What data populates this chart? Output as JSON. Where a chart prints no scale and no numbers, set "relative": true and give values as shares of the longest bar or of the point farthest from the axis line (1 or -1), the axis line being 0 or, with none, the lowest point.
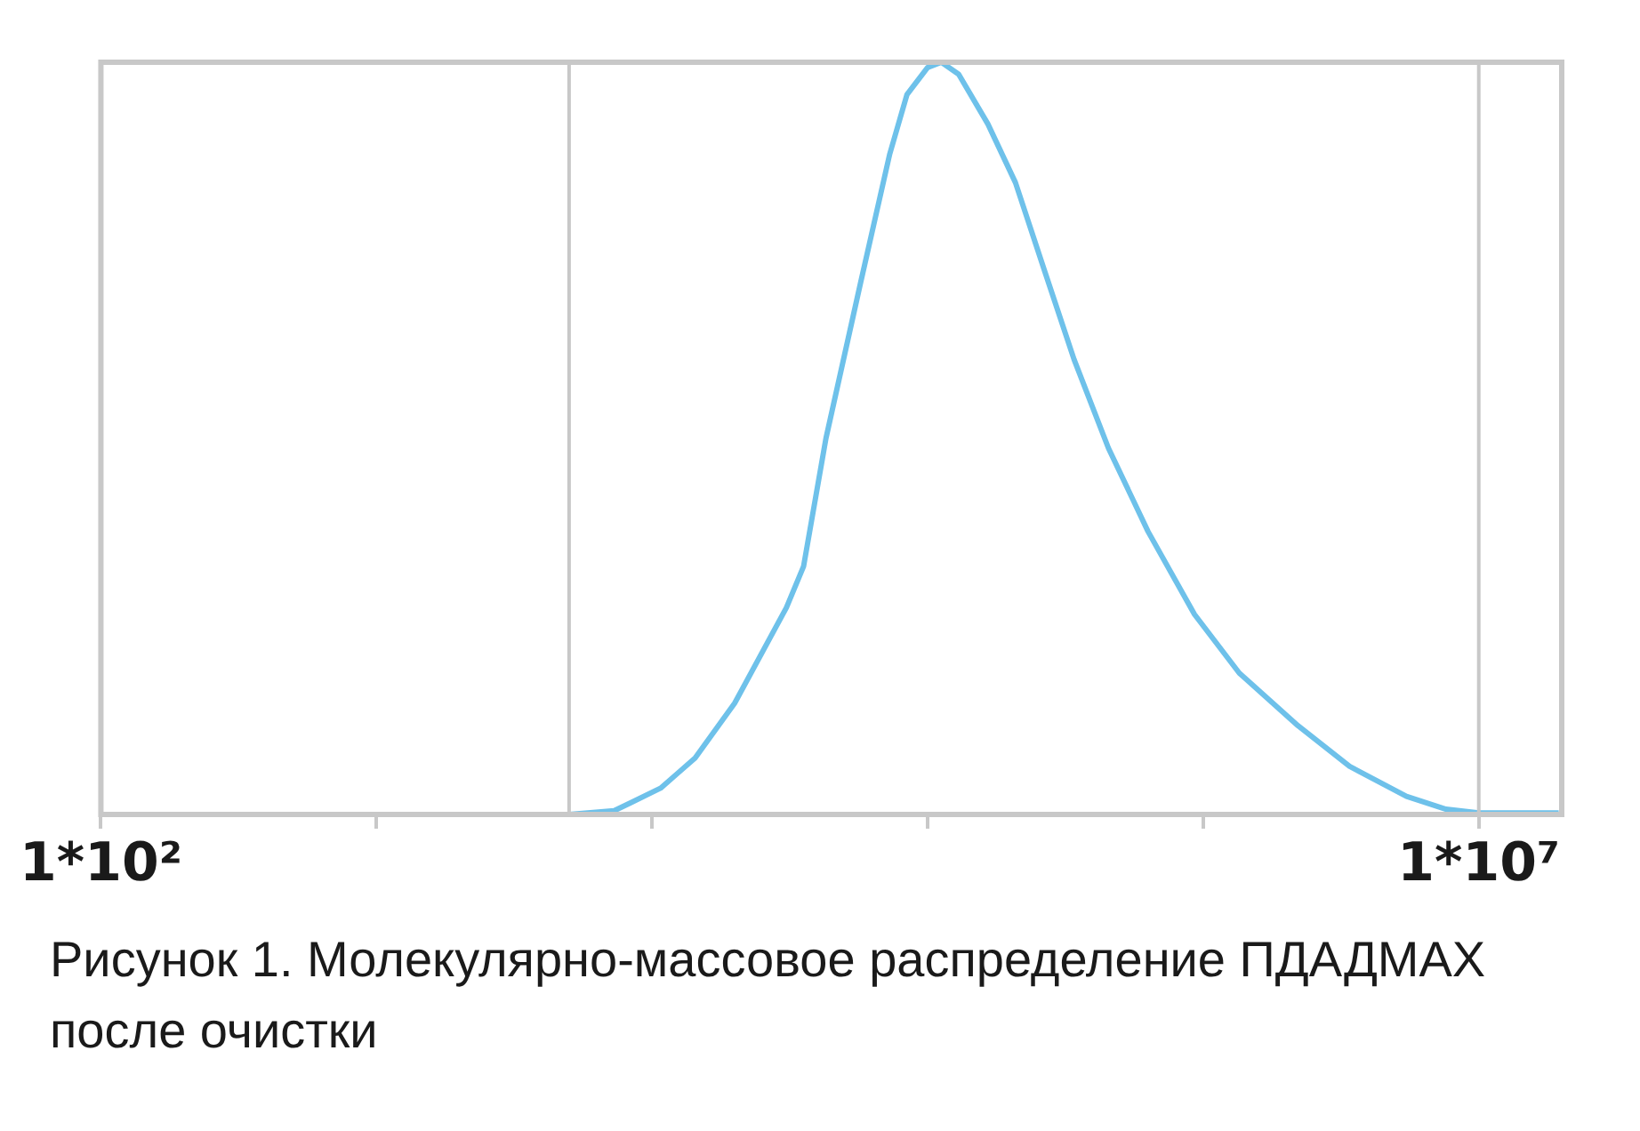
{
  "chart_data": {
    "type": "line",
    "relative": true,
    "annotations": [
      "Рисунок 1. Молекулярно-массовое распределение ПДАДМАХ после очистки"
    ],
    "log": "x",
    "xlim": [
      100,
      20000000
    ],
    "xticks": [
      {
        "value": 100,
        "label": "1*10²"
      },
      {
        "value": 1000,
        "label": null
      },
      {
        "value": 10000,
        "label": null
      },
      {
        "value": 100000,
        "label": null
      },
      {
        "value": 1000000,
        "label": null
      },
      {
        "value": 10000000,
        "label": "1*10⁷"
      }
    ],
    "ref_lines": [
      {
        "axis": "x",
        "value": 5000,
        "color": "#c8c8c8"
      },
      {
        "axis": "x",
        "value": 10000000,
        "color": "#c8c8c8"
      }
    ],
    "series": [
      {
        "color": "#6ec1ea",
        "x": [
          5000,
          7290,
          8410,
          10740,
          14330,
          19950,
          30730,
          35480,
          42760,
          57040,
          72870,
          84140,
          100000,
          112200,
          129600,
          165400,
          208300,
          266100,
          339800,
          453000,
          631000,
          930000,
          1352000,
          2208000,
          3398000,
          5465000,
          7603000,
          10000000,
          19500000
        ],
        "values": [
          0,
          0.005,
          0.016,
          0.035,
          0.075,
          0.148,
          0.275,
          0.33,
          0.5,
          0.706,
          0.878,
          0.957,
          0.993,
          1,
          0.984,
          0.918,
          0.84,
          0.722,
          0.605,
          0.487,
          0.376,
          0.266,
          0.188,
          0.118,
          0.064,
          0.024,
          0.007,
          0.002,
          0.002
        ]
      }
    ]
  }
}
